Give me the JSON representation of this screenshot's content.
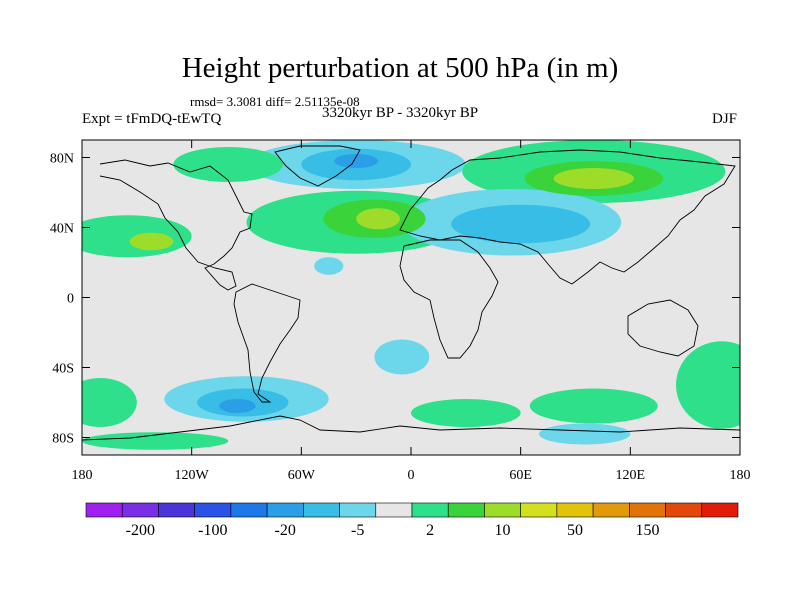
{
  "title": "Height perturbation at 500 hPa (in m)",
  "stats": "rmsd= 3.3081 diff= 2.51135e-08",
  "left_label": "Expt = tFmDQ-tEwTQ",
  "center_label": "3320kyr BP - 3320kyr BP",
  "right_label": "DJF",
  "axes": {
    "lon_range": [
      -180,
      180
    ],
    "lat_range": [
      -90,
      90
    ],
    "x_ticks": [
      {
        "lon": -180,
        "label": "180"
      },
      {
        "lon": -120,
        "label": "120W"
      },
      {
        "lon": -60,
        "label": "60W"
      },
      {
        "lon": 0,
        "label": "0"
      },
      {
        "lon": 60,
        "label": "60E"
      },
      {
        "lon": 120,
        "label": "120E"
      },
      {
        "lon": 180,
        "label": "180"
      }
    ],
    "y_ticks": [
      {
        "lat": 80,
        "label": "80N"
      },
      {
        "lat": 40,
        "label": "40N"
      },
      {
        "lat": 0,
        "label": "0"
      },
      {
        "lat": -40,
        "label": "40S"
      },
      {
        "lat": -80,
        "label": "80S"
      }
    ]
  },
  "colorbar": {
    "colors": [
      "#a020f0",
      "#7b2ee6",
      "#4a35d8",
      "#2a52e6",
      "#1f78e8",
      "#2b9ee8",
      "#37bde6",
      "#6cd6ea",
      "#e6e6e6",
      "#2ee08a",
      "#3ad43a",
      "#9edc2a",
      "#d2e01e",
      "#e2c20a",
      "#e29a0a",
      "#e2720a",
      "#e2480a",
      "#e21c0a"
    ],
    "labels": [
      {
        "index": 1,
        "text": "-200"
      },
      {
        "index": 3,
        "text": "-100"
      },
      {
        "index": 5,
        "text": "-20"
      },
      {
        "index": 7,
        "text": "-5"
      },
      {
        "index": 9,
        "text": "2"
      },
      {
        "index": 11,
        "text": "10"
      },
      {
        "index": 13,
        "text": "50"
      },
      {
        "index": 15,
        "text": "150"
      }
    ]
  },
  "anomaly_regions": [
    {
      "level": 1,
      "color": "#6cd6ea",
      "lon": -30,
      "lat": 76,
      "rlon": 60,
      "rlat": 14
    },
    {
      "level": 2,
      "color": "#37bde6",
      "lon": -30,
      "lat": 76,
      "rlon": 30,
      "rlat": 9
    },
    {
      "level": 3,
      "color": "#2b9ee8",
      "lon": -30,
      "lat": 78,
      "rlon": 12,
      "rlat": 4
    },
    {
      "level": 1,
      "color": "#2ee08a",
      "lon": -100,
      "lat": 76,
      "rlon": 30,
      "rlat": 10
    },
    {
      "level": 1,
      "color": "#2ee08a",
      "lon": -155,
      "lat": 35,
      "rlon": 35,
      "rlat": 12
    },
    {
      "level": 2,
      "color": "#9edc2a",
      "lon": -142,
      "lat": 32,
      "rlon": 12,
      "rlat": 5
    },
    {
      "level": 1,
      "color": "#2ee08a",
      "lon": -30,
      "lat": 43,
      "rlon": 60,
      "rlat": 18
    },
    {
      "level": 2,
      "color": "#3ad43a",
      "lon": -20,
      "lat": 45,
      "rlon": 28,
      "rlat": 11
    },
    {
      "level": 3,
      "color": "#9edc2a",
      "lon": -18,
      "lat": 45,
      "rlon": 12,
      "rlat": 6
    },
    {
      "level": 1,
      "color": "#2ee08a",
      "lon": 100,
      "lat": 72,
      "rlon": 72,
      "rlat": 18
    },
    {
      "level": 2,
      "color": "#3ad43a",
      "lon": 100,
      "lat": 68,
      "rlon": 38,
      "rlat": 10
    },
    {
      "level": 3,
      "color": "#9edc2a",
      "lon": 100,
      "lat": 68,
      "rlon": 22,
      "rlat": 6
    },
    {
      "level": 1,
      "color": "#6cd6ea",
      "lon": 55,
      "lat": 43,
      "rlon": 60,
      "rlat": 19
    },
    {
      "level": 2,
      "color": "#37bde6",
      "lon": 60,
      "lat": 42,
      "rlon": 38,
      "rlat": 11
    },
    {
      "level": 1,
      "color": "#6cd6ea",
      "lon": -45,
      "lat": 18,
      "rlon": 8,
      "rlat": 5
    },
    {
      "level": 1,
      "color": "#6cd6ea",
      "lon": -5,
      "lat": -34,
      "rlon": 15,
      "rlat": 10
    },
    {
      "level": 1,
      "color": "#6cd6ea",
      "lon": -90,
      "lat": -58,
      "rlon": 45,
      "rlat": 13
    },
    {
      "level": 2,
      "color": "#37bde6",
      "lon": -92,
      "lat": -60,
      "rlon": 25,
      "rlat": 8
    },
    {
      "level": 3,
      "color": "#2b9ee8",
      "lon": -95,
      "lat": -62,
      "rlon": 10,
      "rlat": 4
    },
    {
      "level": 1,
      "color": "#2ee08a",
      "lon": -170,
      "lat": -60,
      "rlon": 20,
      "rlat": 14
    },
    {
      "level": 1,
      "color": "#2ee08a",
      "lon": 170,
      "lat": -50,
      "rlon": 25,
      "rlat": 25
    },
    {
      "level": 1,
      "color": "#2ee08a",
      "lon": 30,
      "lat": -66,
      "rlon": 30,
      "rlat": 8
    },
    {
      "level": 1,
      "color": "#2ee08a",
      "lon": 100,
      "lat": -62,
      "rlon": 35,
      "rlat": 10
    },
    {
      "level": 1,
      "color": "#6cd6ea",
      "lon": 95,
      "lat": -78,
      "rlon": 25,
      "rlat": 6
    },
    {
      "level": 1,
      "color": "#2ee08a",
      "lon": -140,
      "lat": -82,
      "rlon": 40,
      "rlat": 5
    }
  ]
}
